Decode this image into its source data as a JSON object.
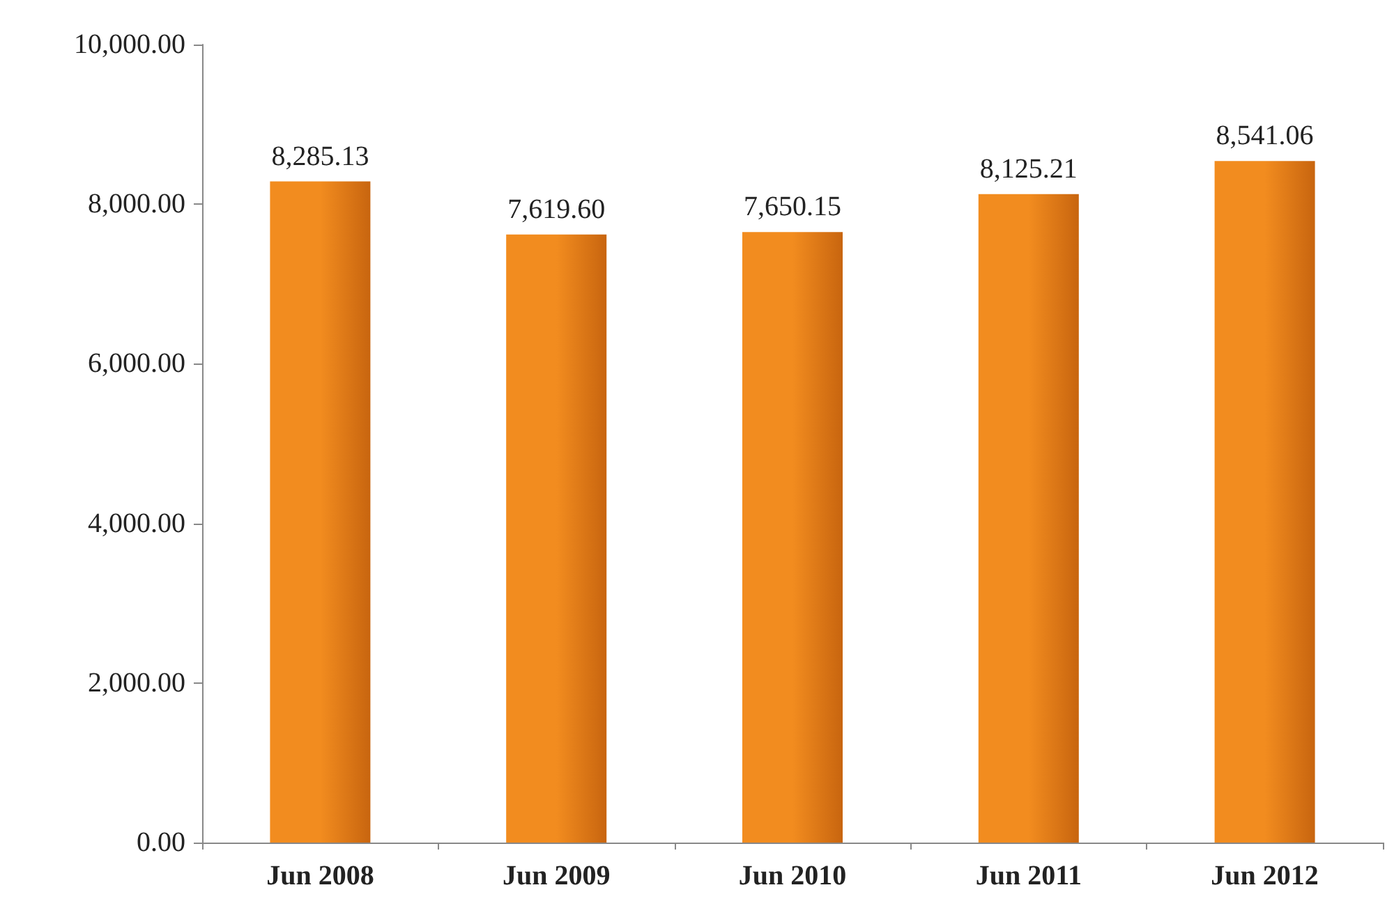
{
  "chart_data": {
    "type": "bar",
    "categories": [
      "Jun 2008",
      "Jun 2009",
      "Jun 2010",
      "Jun 2011",
      "Jun 2012"
    ],
    "values": [
      8285.13,
      7619.6,
      7650.15,
      8125.21,
      8541.06
    ],
    "value_labels": [
      "8,285.13",
      "7,619.60",
      "7,650.15",
      "8,125.21",
      "8,541.06"
    ],
    "color": "#f28c1f",
    "ylim": [
      0,
      10000
    ],
    "yticks": [
      {
        "value": 0,
        "label": "0.00"
      },
      {
        "value": 2000,
        "label": "2,000.00"
      },
      {
        "value": 4000,
        "label": "4,000.00"
      },
      {
        "value": 6000,
        "label": "6,000.00"
      },
      {
        "value": 8000,
        "label": "8,000.00"
      },
      {
        "value": 10000,
        "label": "10,000.00"
      }
    ]
  }
}
